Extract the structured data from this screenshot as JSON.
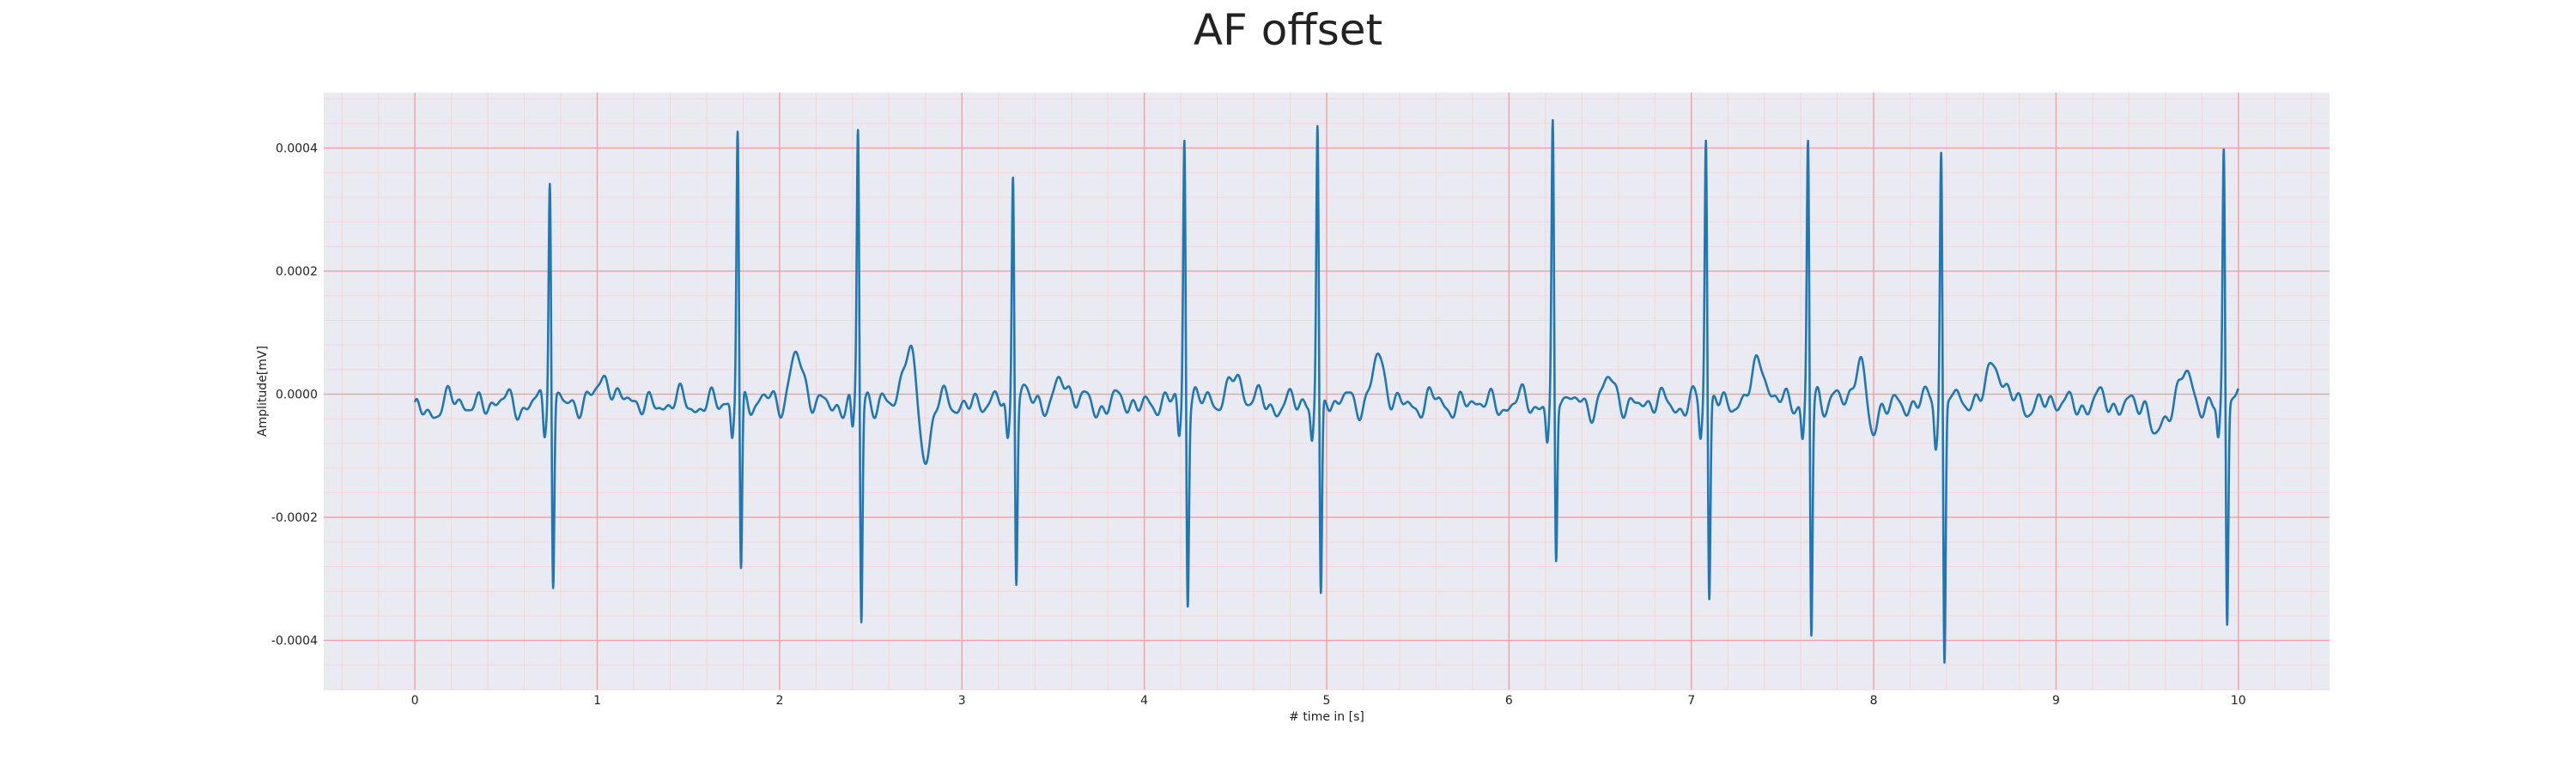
{
  "chart_data": {
    "type": "line",
    "title": "AF offset",
    "xlabel": "# time in [s]",
    "ylabel": "Amplitude[mV]",
    "xlim": [
      -0.5,
      10.5
    ],
    "ylim": [
      -0.00048,
      0.00049
    ],
    "x_ticks": [
      0,
      1,
      2,
      3,
      4,
      5,
      6,
      7,
      8,
      9,
      10
    ],
    "x_tick_labels": [
      "0",
      "1",
      "2",
      "3",
      "4",
      "5",
      "6",
      "7",
      "8",
      "9",
      "10"
    ],
    "y_ticks": [
      0.0004,
      0.0002,
      0.0,
      -0.0002,
      -0.0004
    ],
    "y_tick_labels": [
      "0.0004",
      "0.0002",
      "0.0000",
      "-0.0002",
      "-0.0004"
    ],
    "grid": {
      "major": true,
      "minor": true,
      "major_color": "#f0a0a0",
      "minor_color": "#f7d4d4"
    },
    "background": "#eaeaf2",
    "line_color": "#1f77b4",
    "beats": [
      {
        "t": 0.74,
        "peak": 0.00038,
        "trough": -0.00031
      },
      {
        "t": 1.77,
        "peak": 0.00045,
        "trough": -0.00029
      },
      {
        "t": 2.43,
        "peak": 0.00044,
        "trough": -0.000365
      },
      {
        "t": 3.28,
        "peak": 0.0004,
        "trough": -0.000285
      },
      {
        "t": 4.22,
        "peak": 0.00045,
        "trough": -0.000315
      },
      {
        "t": 4.95,
        "peak": 0.00045,
        "trough": -0.00033
      },
      {
        "t": 6.24,
        "peak": 0.00045,
        "trough": -0.000275
      },
      {
        "t": 7.08,
        "peak": 0.00044,
        "trough": -0.000325
      },
      {
        "t": 7.64,
        "peak": 0.00043,
        "trough": -0.00038
      },
      {
        "t": 8.37,
        "peak": 0.00043,
        "trough": -0.00043
      },
      {
        "t": 9.92,
        "peak": 0.00042,
        "trough": -0.000365
      }
    ],
    "t_waves": [
      {
        "t": 1.05,
        "amp": 5e-05
      },
      {
        "t": 2.09,
        "amp": 7.8e-05
      },
      {
        "t": 2.71,
        "amp": 8.2e-05
      },
      {
        "t": 3.55,
        "amp": 4e-05
      },
      {
        "t": 4.5,
        "amp": 5e-05
      },
      {
        "t": 5.28,
        "amp": 7e-05
      },
      {
        "t": 6.55,
        "amp": 3e-05
      },
      {
        "t": 7.38,
        "amp": 7.5e-05
      },
      {
        "t": 7.93,
        "amp": 9.5e-05
      },
      {
        "t": 8.66,
        "amp": 7.8e-05
      },
      {
        "t": 9.7,
        "amp": 4e-05
      }
    ],
    "post_dips": [
      {
        "t": 2.8,
        "amp": -8e-05
      },
      {
        "t": 7.98,
        "amp": -8e-05
      },
      {
        "t": 9.55,
        "amp": -6e-05
      }
    ],
    "series": [
      {
        "x_start": 0.0,
        "x_end": 10.0
      }
    ]
  }
}
